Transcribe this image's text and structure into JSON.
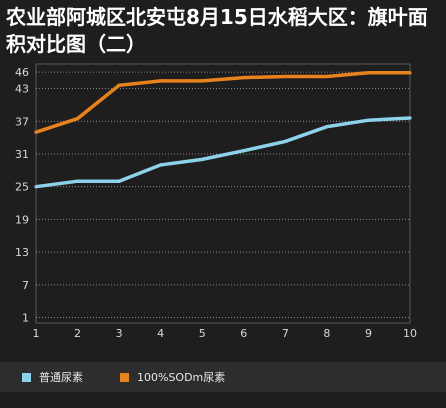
{
  "chart_data": {
    "type": "line",
    "title": "农业部阿城区北安屯8月15日水稻大区：旗叶面积对比图（二）",
    "x": [
      1,
      2,
      3,
      4,
      5,
      6,
      7,
      8,
      9,
      10
    ],
    "y_ticks": [
      1,
      7,
      13,
      19,
      25,
      31,
      37,
      43,
      46
    ],
    "ylim": [
      0,
      47.5
    ],
    "xlim": [
      1,
      10
    ],
    "grid": "horizontal dotted",
    "legend_position": "bottom",
    "series": [
      {
        "name": "普通尿素",
        "color": "#8ed1ea",
        "values": [
          25.0,
          26.0,
          26.0,
          29.0,
          30.0,
          31.6,
          33.3,
          36.0,
          37.2,
          37.6
        ]
      },
      {
        "name": "100%SODm尿素",
        "color": "#e8821c",
        "values": [
          35.0,
          37.5,
          43.6,
          44.4,
          44.4,
          45.0,
          45.2,
          45.2,
          45.9,
          45.9
        ]
      }
    ]
  }
}
